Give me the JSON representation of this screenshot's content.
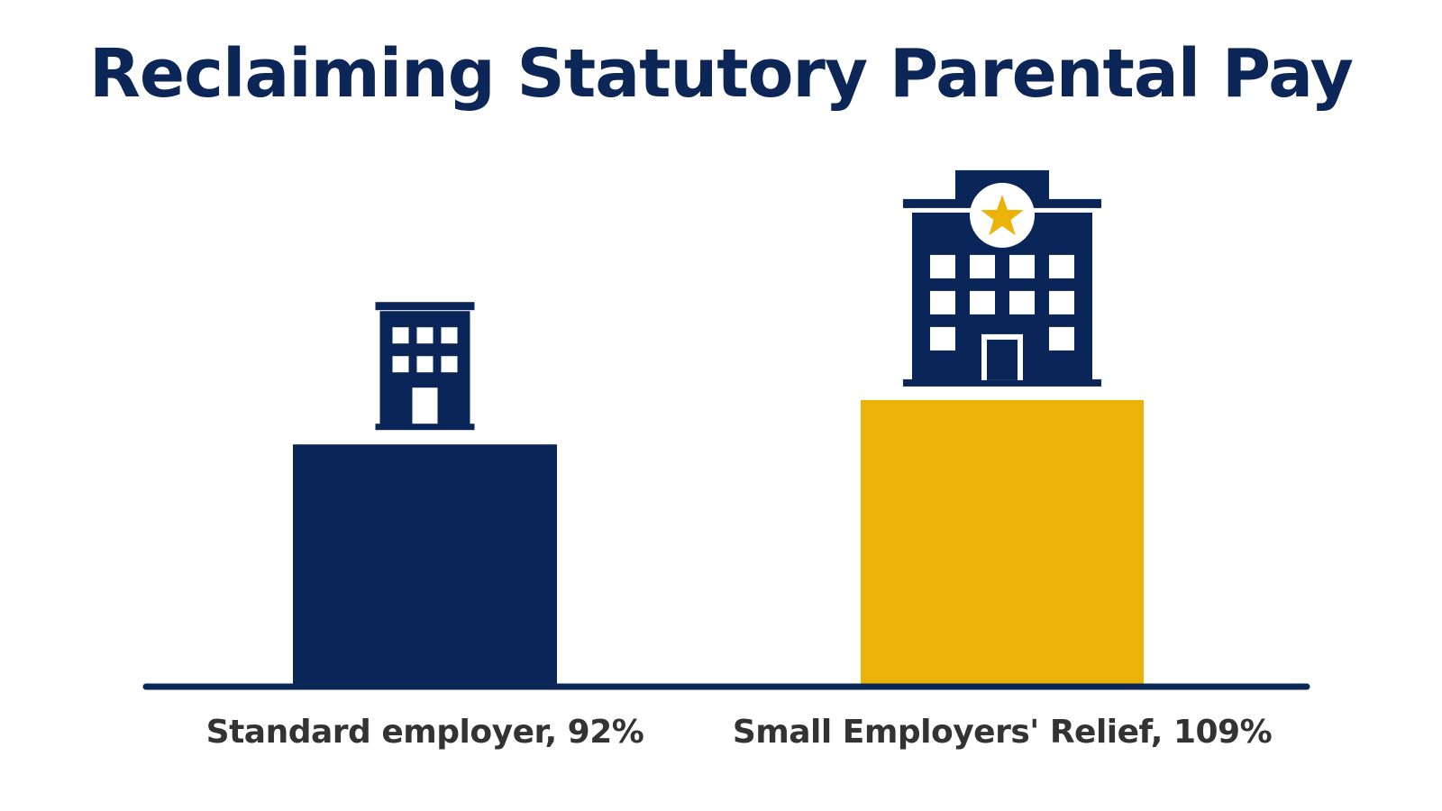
{
  "chart_data": {
    "type": "bar",
    "title": "Reclaiming Statutory Parental Pay",
    "categories": [
      "Standard employer, 92%",
      "Small Employers' Relief, 109%"
    ],
    "values": [
      92,
      109
    ],
    "unit": "%",
    "ylim": [
      0,
      120
    ],
    "xlabel": "",
    "ylabel": "",
    "grid": false,
    "legend": "none",
    "colors": [
      "#0a2558",
      "#ebb208"
    ],
    "icons": [
      "small-office-building-icon",
      "large-office-building-with-star-icon"
    ]
  },
  "colors": {
    "title": "#0d2658",
    "navy": "#0a2558",
    "gold": "#ebb208",
    "label": "#333333",
    "baseline": "#0d2658"
  }
}
